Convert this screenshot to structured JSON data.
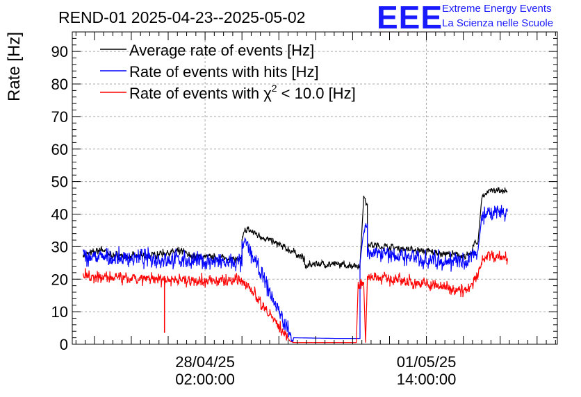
{
  "chart_data": {
    "type": "line",
    "title": "REND-01 2025-04-23--2025-05-02",
    "ylabel": "Rate [Hz]",
    "xlabel": "",
    "ylim": [
      0,
      96
    ],
    "y_ticks": [
      0,
      10,
      20,
      30,
      40,
      50,
      60,
      70,
      80,
      90
    ],
    "grid": true,
    "legend_position": "top-left",
    "x_tick_labels": [
      {
        "x": 2,
        "lines": [
          "28/04/25",
          "02:00:00"
        ]
      },
      {
        "x": 8,
        "lines": [
          "01/05/25",
          "14:00:00"
        ]
      }
    ],
    "xlim": [
      -1.6,
      11.55
    ],
    "series": [
      {
        "name": "Average rate of events [Hz]",
        "color": "#000000",
        "noise": 0.8,
        "points": [
          [
            -1.3,
            27.5
          ],
          [
            -1.0,
            28.2
          ],
          [
            -0.8,
            29.3
          ],
          [
            -0.6,
            27.5
          ],
          [
            0.0,
            27.0
          ],
          [
            0.5,
            27.0
          ],
          [
            0.8,
            28.0
          ],
          [
            1.4,
            28.5
          ],
          [
            1.6,
            27.0
          ],
          [
            2.0,
            26.8
          ],
          [
            2.6,
            26.5
          ],
          [
            3.0,
            25.8
          ],
          [
            3.0,
            32
          ],
          [
            3.1,
            35.5
          ],
          [
            4.4,
            28.3
          ],
          [
            4.7,
            26.3
          ],
          [
            4.7,
            23.8
          ],
          [
            5.0,
            24.8
          ],
          [
            5.5,
            24.5
          ],
          [
            6.2,
            24.2
          ],
          [
            6.2,
            24.5
          ],
          [
            6.3,
            45.0
          ],
          [
            6.4,
            43.0
          ],
          [
            6.4,
            30.0
          ],
          [
            6.5,
            30.5
          ],
          [
            9.1,
            27.0
          ],
          [
            9.2,
            27.5
          ],
          [
            9.3,
            31.0
          ],
          [
            9.4,
            31.5
          ],
          [
            9.5,
            45.0
          ],
          [
            9.7,
            47.5
          ],
          [
            10.0,
            47.0
          ],
          [
            10.2,
            46.8
          ]
        ]
      },
      {
        "name": "Rate of events with hits [Hz]",
        "color": "#0000ff",
        "noise": 1.8,
        "points": [
          [
            -1.3,
            27.0
          ],
          [
            -0.6,
            26.5
          ],
          [
            0.0,
            26.5
          ],
          [
            1.0,
            26.2
          ],
          [
            2.0,
            25.5
          ],
          [
            2.6,
            25.0
          ],
          [
            3.0,
            25.0
          ],
          [
            3.0,
            29.0
          ],
          [
            3.1,
            31.5
          ],
          [
            4.3,
            3.0
          ],
          [
            4.4,
            2.0
          ],
          [
            5.5,
            1.8
          ],
          [
            6.2,
            1.8
          ],
          [
            6.2,
            25.0
          ],
          [
            6.3,
            35.0
          ],
          [
            6.4,
            37.0
          ],
          [
            6.4,
            27.5
          ],
          [
            6.5,
            28.0
          ],
          [
            9.1,
            25.0
          ],
          [
            9.2,
            26.0
          ],
          [
            9.3,
            28.5
          ],
          [
            9.4,
            29.0
          ],
          [
            9.5,
            39.0
          ],
          [
            9.7,
            41.0
          ],
          [
            10.2,
            40.8
          ]
        ]
      },
      {
        "name": "Rate of events with χ² < 10.0 [Hz]",
        "color": "#ff0000",
        "noise": 1.3,
        "points": [
          [
            -1.3,
            21.0
          ],
          [
            -0.6,
            20.5
          ],
          [
            0.0,
            19.8
          ],
          [
            1.0,
            20.0
          ],
          [
            2.0,
            19.5
          ],
          [
            3.0,
            19.5
          ],
          [
            3.1,
            19.0
          ],
          [
            4.3,
            1.0
          ],
          [
            4.4,
            0.5
          ],
          [
            6.1,
            0.5
          ],
          [
            6.15,
            18.5
          ],
          [
            6.3,
            19.0
          ],
          [
            6.35,
            0.5
          ],
          [
            6.4,
            20.5
          ],
          [
            6.5,
            21.0
          ],
          [
            9.1,
            16.5
          ],
          [
            9.2,
            17.0
          ],
          [
            9.3,
            20.0
          ],
          [
            9.4,
            21.0
          ],
          [
            9.5,
            26.0
          ],
          [
            9.7,
            27.5
          ],
          [
            10.2,
            26.5
          ]
        ]
      }
    ],
    "spikes": [
      {
        "series": 2,
        "x": 0.9,
        "y": 3.5
      }
    ]
  },
  "logo": {
    "mark": "EEE",
    "line1": "Extreme Energy Events",
    "line2": "La Scienza nelle Scuole"
  },
  "legend_labels": {
    "avg": "Average rate of events [Hz]",
    "hits": "Rate of events with hits [Hz]",
    "chi_prefix": "Rate of events with χ",
    "chi_sup": "2",
    "chi_suffix": " < 10.0 [Hz]"
  }
}
